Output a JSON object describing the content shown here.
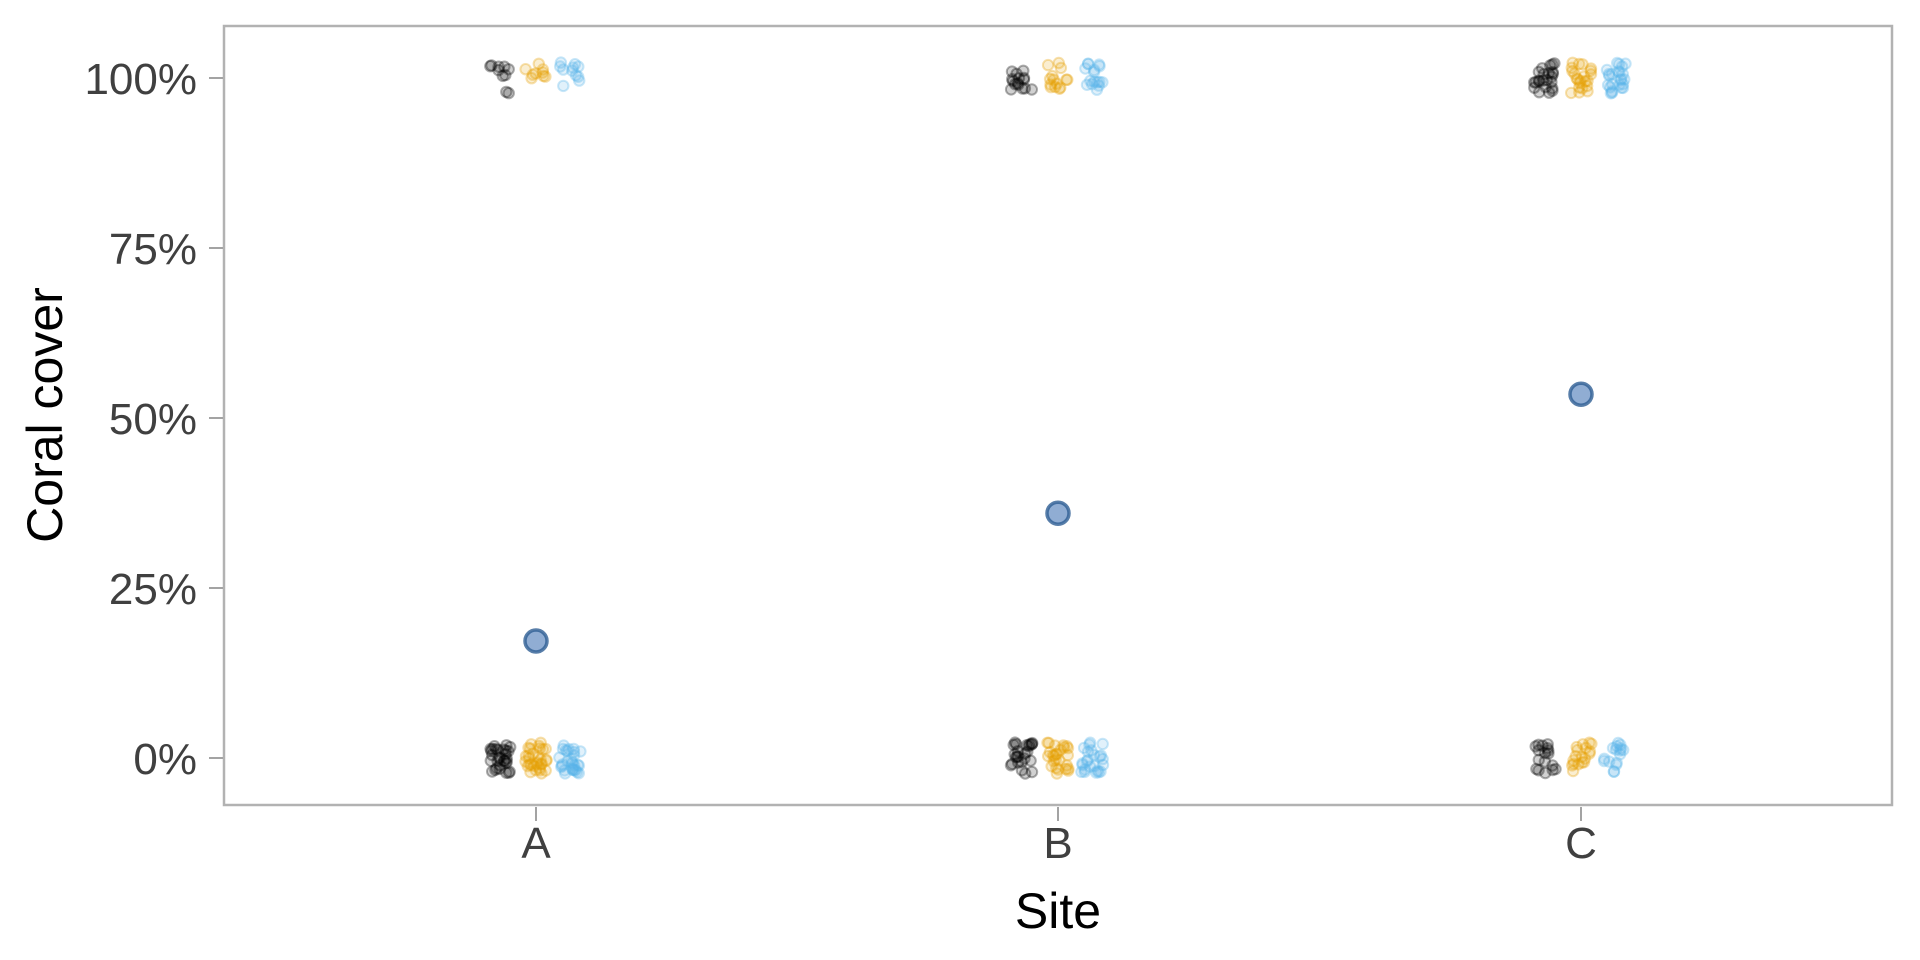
{
  "chart_data": {
    "type": "scatter",
    "subtype": "jittered-binary-observations-with-site-means",
    "title": "",
    "xlabel": "Site",
    "ylabel": "Coral cover",
    "x_categories": [
      "A",
      "B",
      "C"
    ],
    "y_axis": {
      "tick_labels": [
        "0%",
        "25%",
        "50%",
        "75%",
        "100%"
      ],
      "tick_values": [
        0,
        25,
        50,
        75,
        100
      ],
      "range_pct": [
        -7,
        108
      ]
    },
    "grid": false,
    "legend": false,
    "series": [
      {
        "name": "black",
        "color": "#000000",
        "counts_at_100_pct_by_site": [
          10,
          15,
          23
        ],
        "counts_at_0_pct_by_site": [
          30,
          25,
          17
        ]
      },
      {
        "name": "orange",
        "color": "#E69F00",
        "counts_at_100_pct_by_site": [
          9,
          14,
          22
        ],
        "counts_at_0_pct_by_site": [
          31,
          26,
          18
        ]
      },
      {
        "name": "blue",
        "color": "#56B4E9",
        "counts_at_100_pct_by_site": [
          11,
          16,
          24
        ],
        "counts_at_0_pct_by_site": [
          29,
          24,
          16
        ]
      }
    ],
    "summary_series": {
      "name": "site-mean",
      "fill_color": "#4C7BB8",
      "stroke_color": "#2E5E94",
      "values_pct": [
        17.2,
        36.0,
        53.5
      ]
    }
  }
}
